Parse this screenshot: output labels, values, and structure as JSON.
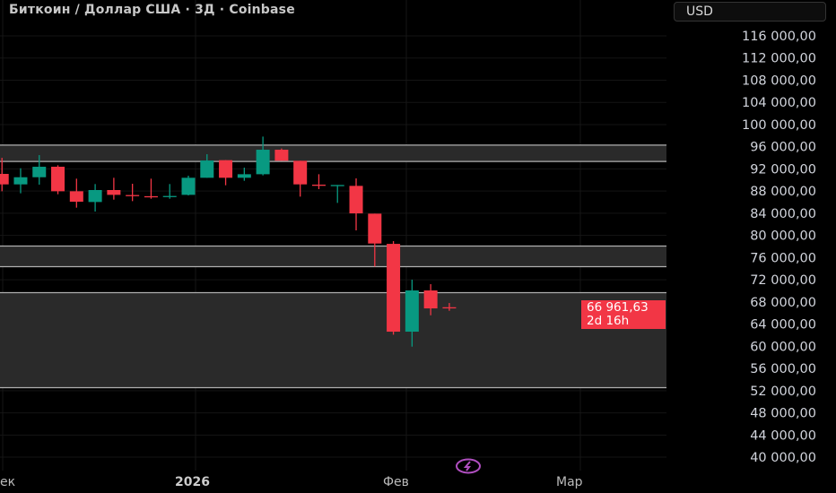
{
  "header": {
    "title": "Биткоин / Доллар США · 3Д · Coinbase",
    "currency_button": "USD"
  },
  "price_axis": {
    "labels": [
      "116 000,00",
      "112 000,00",
      "108 000,00",
      "104 000,00",
      "100 000,00",
      "96 000,00",
      "92 000,00",
      "88 000,00",
      "84 000,00",
      "80 000,00",
      "76 000,00",
      "72 000,00",
      "68 000,00",
      "64 000,00",
      "60 000,00",
      "56 000,00",
      "52 000,00",
      "48 000,00",
      "44 000,00",
      "40 000,00"
    ],
    "values": [
      116000,
      112000,
      108000,
      104000,
      100000,
      96000,
      92000,
      88000,
      84000,
      80000,
      76000,
      72000,
      68000,
      64000,
      60000,
      56000,
      52000,
      48000,
      44000,
      40000
    ]
  },
  "last_price": {
    "value": "66 961,63",
    "countdown": "2d 16h"
  },
  "time_axis": {
    "labels": [
      "ек",
      "2026",
      "Фев",
      "Мар"
    ]
  },
  "colors": {
    "up": "#089981",
    "down": "#f23645",
    "zone": "#2a2a2a",
    "zone_line": "#b0b0b0",
    "icon": "#b04fc0"
  },
  "chart_data": {
    "type": "candlestick",
    "title": "Биткоин / Доллар США · 3Д · Coinbase",
    "ylim": [
      40000,
      116000
    ],
    "candles": [
      {
        "o": 91100,
        "h": 94000,
        "l": 87970,
        "c": 89210
      },
      {
        "o": 89210,
        "h": 92120,
        "l": 87600,
        "c": 90500
      },
      {
        "o": 90500,
        "h": 94490,
        "l": 89160,
        "c": 92390
      },
      {
        "o": 92390,
        "h": 92660,
        "l": 87430,
        "c": 87970
      },
      {
        "o": 87970,
        "h": 90240,
        "l": 85010,
        "c": 86080
      },
      {
        "o": 86030,
        "h": 89270,
        "l": 84310,
        "c": 88190
      },
      {
        "o": 88190,
        "h": 90400,
        "l": 86460,
        "c": 87320
      },
      {
        "o": 87290,
        "h": 89320,
        "l": 86190,
        "c": 87240
      },
      {
        "o": 87080,
        "h": 90240,
        "l": 86620,
        "c": 87010
      },
      {
        "o": 87050,
        "h": 89270,
        "l": 86620,
        "c": 87120
      },
      {
        "o": 87320,
        "h": 90780,
        "l": 87220,
        "c": 90400
      },
      {
        "o": 90400,
        "h": 94650,
        "l": 90400,
        "c": 93520
      },
      {
        "o": 93580,
        "h": 93580,
        "l": 89050,
        "c": 90400
      },
      {
        "o": 90400,
        "h": 92230,
        "l": 89860,
        "c": 91040
      },
      {
        "o": 91040,
        "h": 97830,
        "l": 90830,
        "c": 95460
      },
      {
        "o": 95460,
        "h": 95680,
        "l": 93470,
        "c": 93470
      },
      {
        "o": 93470,
        "h": 93470,
        "l": 87000,
        "c": 89210
      },
      {
        "o": 89160,
        "h": 91040,
        "l": 88350,
        "c": 89100
      },
      {
        "o": 89020,
        "h": 89100,
        "l": 85870,
        "c": 89100
      },
      {
        "o": 88940,
        "h": 90290,
        "l": 80910,
        "c": 83980
      },
      {
        "o": 83930,
        "h": 83930,
        "l": 74390,
        "c": 78540
      },
      {
        "o": 78480,
        "h": 78970,
        "l": 62100,
        "c": 62640
      },
      {
        "o": 62640,
        "h": 72020,
        "l": 59940,
        "c": 70080
      },
      {
        "o": 70080,
        "h": 71210,
        "l": 65600,
        "c": 66840
      },
      {
        "o": 67050,
        "h": 67810,
        "l": 66410,
        "c": 66960
      }
    ],
    "zones": [
      [
        93340,
        96300
      ],
      [
        74370,
        78080
      ],
      [
        52540,
        69680
      ]
    ]
  }
}
